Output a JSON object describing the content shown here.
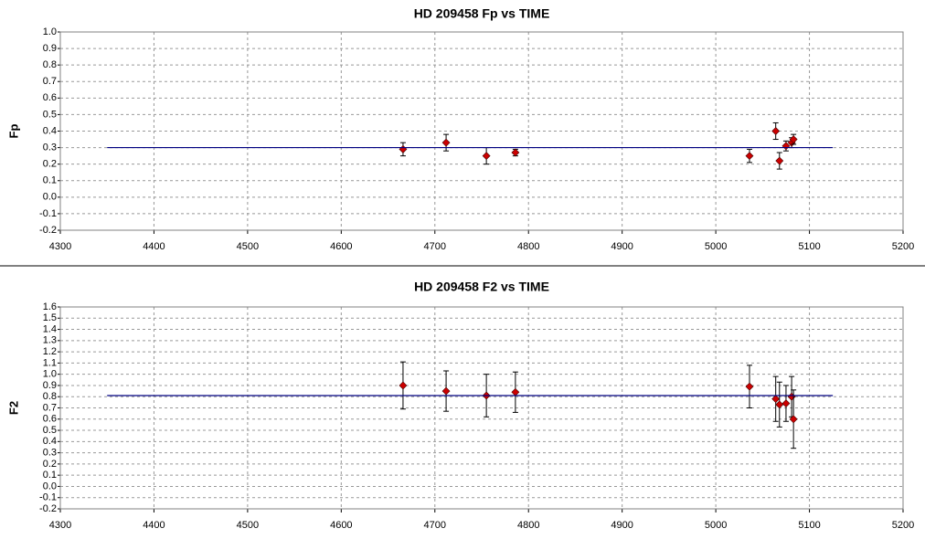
{
  "chart_data": [
    {
      "type": "scatter",
      "title": "HD 209458 Fp vs TIME",
      "y_label": "Fp",
      "xlim": [
        4300,
        5200
      ],
      "xticks": [
        4300,
        4400,
        4500,
        4600,
        4700,
        4800,
        4900,
        5000,
        5100,
        5200
      ],
      "ylim": [
        -0.2,
        1.0
      ],
      "yticks": [
        -0.2,
        -0.1,
        {
          "value": 0,
          "label": "0.0"
        },
        0.1,
        0.2,
        0.3,
        0.4,
        0.5,
        0.6,
        0.7,
        0.8,
        0.9,
        {
          "value": 1,
          "label": "1.0"
        }
      ],
      "grid": true,
      "series": [
        {
          "mode": "markers",
          "color": "#cc0000",
          "x": [
            4666,
            4712,
            4755,
            4786,
            5036,
            5064,
            5068,
            5075,
            5081,
            5083
          ],
          "values": [
            0.29,
            0.33,
            0.25,
            0.27,
            0.25,
            0.4,
            0.22,
            0.31,
            0.33,
            0.35
          ],
          "errors": [
            0.04,
            0.05,
            0.05,
            0.02,
            0.04,
            0.05,
            0.05,
            0.03,
            0.03,
            0.03
          ]
        },
        {
          "mode": "line",
          "color": "#000080",
          "x": [
            4350,
            5125
          ],
          "values": [
            0.3,
            0.3
          ]
        }
      ]
    },
    {
      "type": "scatter",
      "title": "HD 209458 F2 vs TIME",
      "y_label": "F2",
      "xlim": [
        4300,
        5200
      ],
      "xticks": [
        4300,
        4400,
        4500,
        4600,
        4700,
        4800,
        4900,
        5000,
        5100,
        5200
      ],
      "ylim": [
        -0.2,
        1.6
      ],
      "yticks": [
        -0.2,
        -0.1,
        {
          "value": 0,
          "label": "0.0"
        },
        0.1,
        0.2,
        0.3,
        0.4,
        0.5,
        0.6,
        0.7,
        0.8,
        0.9,
        {
          "value": 1,
          "label": "1.0"
        },
        1.1,
        1.2,
        1.3,
        1.4,
        1.5,
        1.6
      ],
      "grid": true,
      "series": [
        {
          "mode": "markers",
          "color": "#cc0000",
          "x": [
            4666,
            4712,
            4755,
            4786,
            5036,
            5064,
            5068,
            5075,
            5081,
            5083
          ],
          "values": [
            0.9,
            0.85,
            0.81,
            0.84,
            0.89,
            0.78,
            0.73,
            0.74,
            0.8,
            0.6
          ],
          "errors": [
            0.21,
            0.18,
            0.19,
            0.18,
            0.19,
            0.2,
            0.2,
            0.16,
            0.18,
            0.26
          ]
        },
        {
          "mode": "line",
          "color": "#000080",
          "x": [
            4350,
            5125
          ],
          "values": [
            0.81,
            0.81
          ]
        }
      ]
    }
  ]
}
